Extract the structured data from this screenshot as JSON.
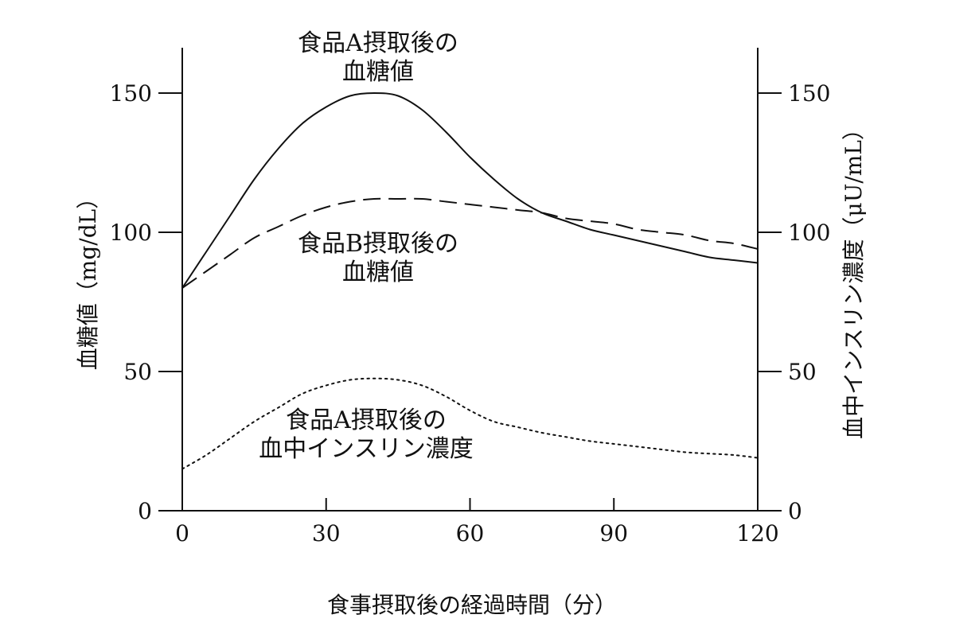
{
  "chart_data": {
    "type": "line",
    "xlabel": "食事摂取後の経過時間（分）",
    "ylabel_left": "血糖値（mg/dL）",
    "ylabel_right": "血中インスリン濃度（μU/mL）",
    "xlim": [
      0,
      120
    ],
    "ylim_left": [
      0,
      150
    ],
    "ylim_right": [
      0,
      150
    ],
    "x_ticks": [
      0,
      30,
      60,
      90,
      120
    ],
    "y_ticks_left": [
      0,
      50,
      100,
      150
    ],
    "y_ticks_right": [
      0,
      50,
      100,
      150
    ],
    "grid": false,
    "series": [
      {
        "name": "食品A摂取後の血糖値",
        "axis": "left",
        "style": "solid",
        "x": [
          0,
          5,
          10,
          15,
          20,
          25,
          30,
          35,
          40,
          45,
          50,
          55,
          60,
          65,
          70,
          75,
          80,
          85,
          90,
          95,
          100,
          105,
          110,
          115,
          120
        ],
        "y": [
          80,
          93,
          106,
          119,
          130,
          139,
          145,
          149,
          150,
          149,
          144,
          136,
          127,
          119,
          112,
          107,
          104,
          101,
          99,
          97,
          95,
          93,
          91,
          90,
          89
        ]
      },
      {
        "name": "食品B摂取後の血糖値",
        "axis": "left",
        "style": "dashed",
        "x": [
          0,
          5,
          10,
          15,
          20,
          25,
          30,
          35,
          40,
          45,
          50,
          55,
          60,
          65,
          70,
          75,
          80,
          85,
          90,
          95,
          100,
          105,
          110,
          115,
          120
        ],
        "y": [
          80,
          86,
          92,
          98,
          102,
          106,
          109,
          111,
          112,
          112,
          112,
          111,
          110,
          109,
          108,
          107,
          105,
          104,
          103,
          101,
          100,
          99,
          97,
          96,
          94
        ]
      },
      {
        "name": "食品A摂取後の血中インスリン濃度",
        "axis": "right",
        "style": "dotted",
        "x": [
          0,
          5,
          10,
          15,
          20,
          25,
          30,
          35,
          40,
          45,
          50,
          55,
          60,
          65,
          70,
          75,
          80,
          85,
          90,
          95,
          100,
          105,
          110,
          115,
          120
        ],
        "y": [
          15,
          20,
          26,
          32,
          37,
          42,
          45,
          47,
          47.5,
          47,
          45,
          41,
          36,
          32,
          30,
          28,
          26.5,
          25,
          24,
          23,
          22,
          21,
          20.5,
          20,
          19
        ]
      }
    ],
    "annotations": [
      {
        "series": 0,
        "lines": [
          "食品A摂取後の",
          "血糖値"
        ]
      },
      {
        "series": 1,
        "lines": [
          "食品B摂取後の",
          "血糖値"
        ]
      },
      {
        "series": 2,
        "lines": [
          "食品A摂取後の",
          "血中インスリン濃度"
        ]
      }
    ]
  }
}
